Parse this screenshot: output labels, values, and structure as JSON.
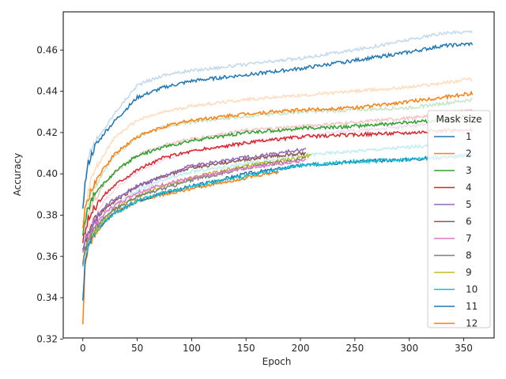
{
  "chart_data": {
    "type": "line",
    "xlabel": "Epoch",
    "ylabel": "Accuracy",
    "xlim": [
      -18,
      378
    ],
    "ylim": [
      0.3205,
      0.4785
    ],
    "xticks": [
      0,
      50,
      100,
      150,
      200,
      250,
      300,
      350
    ],
    "yticks": [
      0.32,
      0.34,
      0.36,
      0.38,
      0.4,
      0.42,
      0.44,
      0.46
    ],
    "ytick_labels": [
      "0.32",
      "0.34",
      "0.36",
      "0.38",
      "0.40",
      "0.42",
      "0.44",
      "0.46"
    ],
    "grid": false,
    "legend": {
      "title": "Mask size",
      "placement": "right"
    },
    "note_on_faint_lines": "each series also has a lighter, semi-transparent companion curve drawn in the same hue",
    "series": [
      {
        "name": "1",
        "color": "#1f77b4",
        "x": [
          0,
          2,
          5,
          10,
          20,
          30,
          50,
          75,
          100,
          150,
          200,
          250,
          300,
          330,
          358
        ],
        "y": [
          0.384,
          0.395,
          0.405,
          0.412,
          0.42,
          0.426,
          0.437,
          0.442,
          0.445,
          0.448,
          0.451,
          0.455,
          0.459,
          0.462,
          0.463
        ]
      },
      {
        "name": "2",
        "color": "#ff7f0e",
        "x": [
          0,
          2,
          5,
          10,
          20,
          30,
          50,
          75,
          100,
          150,
          200,
          250,
          300,
          330,
          358
        ],
        "y": [
          0.374,
          0.382,
          0.388,
          0.395,
          0.403,
          0.41,
          0.418,
          0.423,
          0.426,
          0.429,
          0.431,
          0.432,
          0.435,
          0.437,
          0.439
        ]
      },
      {
        "name": "3",
        "color": "#2ca02c",
        "x": [
          0,
          2,
          5,
          10,
          20,
          30,
          50,
          75,
          100,
          150,
          200,
          250,
          300,
          330,
          358
        ],
        "y": [
          0.37,
          0.378,
          0.383,
          0.389,
          0.396,
          0.401,
          0.409,
          0.413,
          0.416,
          0.42,
          0.422,
          0.423,
          0.425,
          0.426,
          0.428
        ]
      },
      {
        "name": "4",
        "color": "#d62728",
        "x": [
          0,
          2,
          5,
          10,
          20,
          30,
          50,
          75,
          100,
          150,
          200,
          250,
          300,
          330,
          358
        ],
        "y": [
          0.366,
          0.372,
          0.378,
          0.383,
          0.39,
          0.395,
          0.402,
          0.408,
          0.411,
          0.415,
          0.418,
          0.419,
          0.42,
          0.421,
          0.421
        ]
      },
      {
        "name": "5",
        "color": "#9467bd",
        "x": [
          0,
          2,
          5,
          10,
          20,
          30,
          50,
          75,
          100,
          150,
          180,
          205
        ],
        "y": [
          0.362,
          0.368,
          0.372,
          0.377,
          0.384,
          0.388,
          0.394,
          0.399,
          0.404,
          0.408,
          0.41,
          0.412
        ]
      },
      {
        "name": "6",
        "color": "#8c564b",
        "x": [
          0,
          2,
          5,
          10,
          20,
          30,
          50,
          75,
          100,
          150,
          180,
          205
        ],
        "y": [
          0.362,
          0.367,
          0.371,
          0.377,
          0.383,
          0.387,
          0.394,
          0.399,
          0.403,
          0.407,
          0.409,
          0.41
        ]
      },
      {
        "name": "7",
        "color": "#e377c2",
        "x": [
          0,
          2,
          5,
          10,
          20,
          30,
          50,
          75,
          100,
          150,
          200,
          205
        ],
        "y": [
          0.36,
          0.366,
          0.37,
          0.375,
          0.381,
          0.385,
          0.391,
          0.395,
          0.398,
          0.403,
          0.406,
          0.407
        ]
      },
      {
        "name": "8",
        "color": "#7f7f7f",
        "x": [
          0,
          2,
          5,
          10,
          20,
          30,
          50,
          75,
          100,
          150,
          200,
          205
        ],
        "y": [
          0.358,
          0.363,
          0.368,
          0.373,
          0.379,
          0.383,
          0.389,
          0.393,
          0.397,
          0.403,
          0.407,
          0.408
        ]
      },
      {
        "name": "9",
        "color": "#bcbd22",
        "x": [
          0,
          2,
          5,
          10,
          20,
          30,
          50,
          75,
          100,
          150,
          200,
          210
        ],
        "y": [
          0.358,
          0.363,
          0.368,
          0.372,
          0.378,
          0.383,
          0.389,
          0.394,
          0.398,
          0.404,
          0.408,
          0.409
        ]
      },
      {
        "name": "10",
        "color": "#17becf",
        "x": [
          0,
          2,
          5,
          10,
          20,
          30,
          50,
          75,
          100,
          150,
          200,
          250,
          300,
          330,
          358
        ],
        "y": [
          0.356,
          0.362,
          0.366,
          0.371,
          0.377,
          0.381,
          0.387,
          0.391,
          0.394,
          0.399,
          0.404,
          0.406,
          0.407,
          0.408,
          0.409
        ]
      },
      {
        "name": "11",
        "color": "#1f77b4",
        "x": [
          0,
          2,
          5,
          10,
          20,
          30,
          50,
          75,
          100,
          150,
          200,
          250,
          300,
          330,
          358
        ],
        "y": [
          0.339,
          0.358,
          0.366,
          0.371,
          0.377,
          0.381,
          0.387,
          0.391,
          0.394,
          0.4,
          0.404,
          0.406,
          0.407,
          0.408,
          0.409
        ]
      },
      {
        "name": "12",
        "color": "#ff7f0e",
        "x": [
          0,
          2,
          5,
          10,
          20,
          30,
          50,
          75,
          100,
          150,
          180
        ],
        "y": [
          0.327,
          0.355,
          0.364,
          0.37,
          0.377,
          0.381,
          0.387,
          0.39,
          0.393,
          0.398,
          0.401
        ]
      }
    ],
    "faint_series": [
      {
        "color": "#1f77b4",
        "x": [
          0,
          5,
          10,
          20,
          30,
          50,
          75,
          100,
          150,
          200,
          250,
          300,
          330,
          358
        ],
        "y": [
          0.386,
          0.408,
          0.414,
          0.422,
          0.43,
          0.443,
          0.448,
          0.45,
          0.453,
          0.456,
          0.46,
          0.465,
          0.468,
          0.469
        ]
      },
      {
        "color": "#ff7f0e",
        "x": [
          0,
          5,
          10,
          20,
          30,
          50,
          75,
          100,
          150,
          200,
          250,
          300,
          330,
          358
        ],
        "y": [
          0.376,
          0.392,
          0.4,
          0.41,
          0.418,
          0.426,
          0.43,
          0.433,
          0.436,
          0.438,
          0.44,
          0.442,
          0.444,
          0.446
        ]
      },
      {
        "color": "#2ca02c",
        "x": [
          0,
          5,
          10,
          20,
          30,
          50,
          75,
          100,
          150,
          200,
          250,
          300,
          330,
          358
        ],
        "y": [
          0.372,
          0.386,
          0.393,
          0.402,
          0.409,
          0.418,
          0.423,
          0.425,
          0.428,
          0.43,
          0.431,
          0.432,
          0.434,
          0.436
        ]
      },
      {
        "color": "#d62728",
        "x": [
          0,
          5,
          10,
          20,
          30,
          50,
          75,
          100,
          150,
          200,
          250,
          300,
          330,
          358
        ],
        "y": [
          0.368,
          0.381,
          0.387,
          0.395,
          0.401,
          0.409,
          0.414,
          0.417,
          0.421,
          0.423,
          0.425,
          0.427,
          0.429,
          0.431
        ]
      },
      {
        "color": "#e377c2",
        "x": [
          0,
          5,
          10,
          20,
          30,
          50,
          75,
          100,
          150,
          200,
          250,
          300,
          330,
          358
        ],
        "y": [
          0.362,
          0.373,
          0.379,
          0.387,
          0.393,
          0.401,
          0.407,
          0.411,
          0.415,
          0.418,
          0.421,
          0.423,
          0.425,
          0.426
        ]
      },
      {
        "color": "#17becf",
        "x": [
          0,
          5,
          10,
          20,
          30,
          50,
          75,
          100,
          150,
          200,
          250,
          300,
          330,
          358
        ],
        "y": [
          0.358,
          0.369,
          0.374,
          0.381,
          0.385,
          0.392,
          0.397,
          0.401,
          0.405,
          0.409,
          0.411,
          0.413,
          0.414,
          0.415
        ]
      }
    ]
  }
}
